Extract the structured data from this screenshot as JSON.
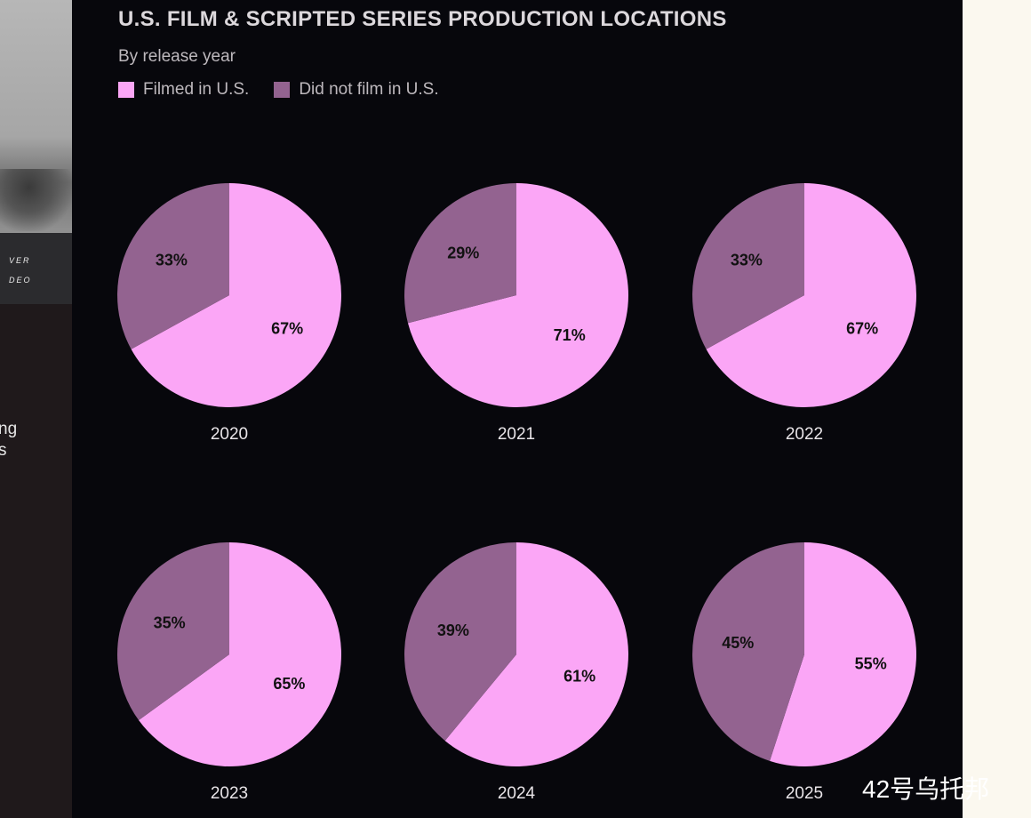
{
  "left_strip": {
    "text_lines": [
      "VER",
      "DEO"
    ],
    "caption_lines": [
      "ng",
      "s"
    ]
  },
  "header": {
    "title": "U.S. FILM & SCRIPTED SERIES PRODUCTION LOCATIONS",
    "subtitle": "By release year"
  },
  "legend": [
    {
      "label": "Filmed in U.S.",
      "color": "#fba6f6"
    },
    {
      "label": "Did not film in U.S.",
      "color": "#936390"
    }
  ],
  "chart_data": {
    "type": "pie",
    "title": "U.S. FILM & SCRIPTED SERIES PRODUCTION LOCATIONS",
    "subtitle": "By release year",
    "series_names": [
      "Filmed in U.S.",
      "Did not film in U.S."
    ],
    "colors": [
      "#fba6f6",
      "#936390"
    ],
    "pies": [
      {
        "year": "2020",
        "values": [
          67,
          33
        ],
        "labels": [
          "67%",
          "33%"
        ]
      },
      {
        "year": "2021",
        "values": [
          71,
          29
        ],
        "labels": [
          "71%",
          "29%"
        ]
      },
      {
        "year": "2022",
        "values": [
          67,
          33
        ],
        "labels": [
          "67%",
          "33%"
        ]
      },
      {
        "year": "2023",
        "values": [
          65,
          35
        ],
        "labels": [
          "65%",
          "35%"
        ]
      },
      {
        "year": "2024",
        "values": [
          61,
          39
        ],
        "labels": [
          "61%",
          "39%"
        ]
      },
      {
        "year": "2025",
        "values": [
          55,
          45
        ],
        "labels": [
          "55%",
          "45%"
        ]
      }
    ],
    "legend_position": "top-left"
  },
  "watermark": "42号乌托邦"
}
